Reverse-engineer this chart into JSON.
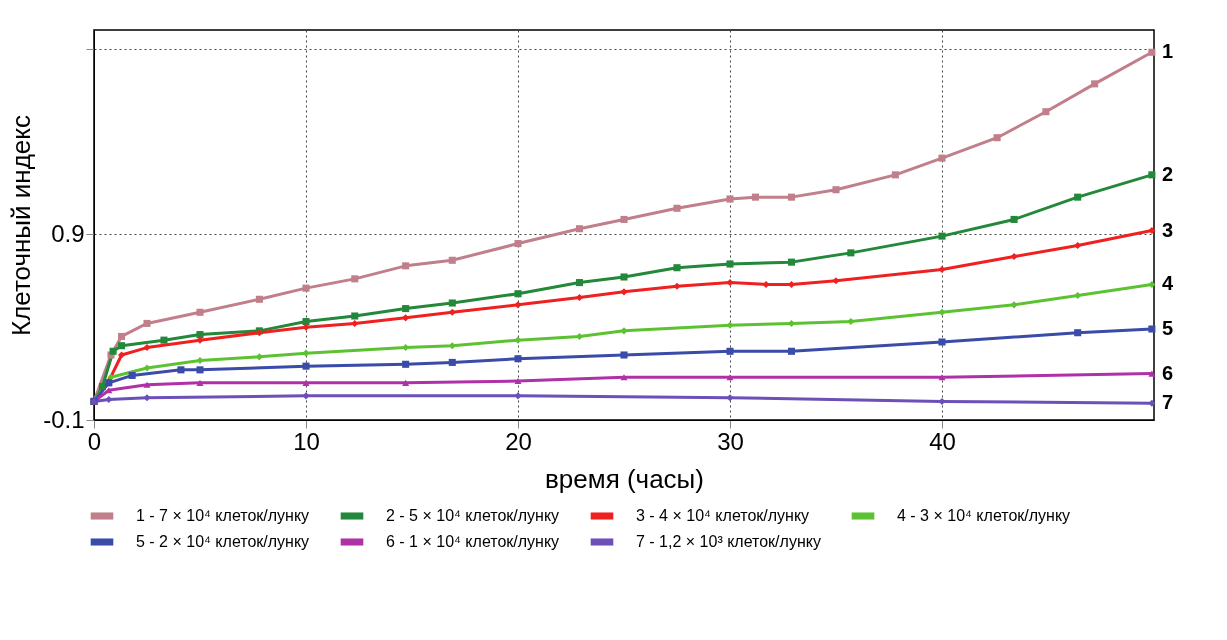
{
  "chart_data": {
    "type": "line",
    "xlabel": "время (часы)",
    "ylabel": "Клеточный индекс",
    "xlim": [
      0,
      50
    ],
    "xticks": [
      0,
      10,
      20,
      30,
      40
    ],
    "ylim": [
      -0.1,
      2.0
    ],
    "yticks": [
      -0.1,
      0.9,
      {
        "value": 1.9,
        "label": null
      }
    ],
    "grid": true,
    "legend": "bottom",
    "line_style": "solid",
    "series": [
      {
        "name": "1 - 7 × 10⁴ клеток/лунку",
        "color": "#c07f8a",
        "marker": "square",
        "x": [
          0,
          0.8,
          1.3,
          2.5,
          5,
          7.8,
          10,
          12.3,
          14.7,
          16.9,
          20,
          22.9,
          25,
          27.5,
          30,
          31.2,
          32.9,
          35,
          37.8,
          40,
          42.6,
          44.9,
          47.2,
          49.9
        ],
        "values": [
          0,
          0.25,
          0.35,
          0.42,
          0.48,
          0.55,
          0.61,
          0.66,
          0.73,
          0.76,
          0.85,
          0.93,
          0.98,
          1.04,
          1.09,
          1.1,
          1.1,
          1.14,
          1.22,
          1.31,
          1.42,
          1.56,
          1.71,
          1.88
        ]
      },
      {
        "name": "2 - 5 × 10⁴ клеток/лунку",
        "color": "#23883a",
        "marker": "square",
        "x": [
          0,
          0.4,
          0.9,
          1.3,
          3.3,
          5,
          7.8,
          10,
          12.3,
          14.7,
          16.9,
          20,
          22.9,
          25,
          27.5,
          30,
          32.9,
          35.7,
          40,
          43.4,
          46.4,
          49.9
        ],
        "values": [
          0,
          0.08,
          0.27,
          0.3,
          0.33,
          0.36,
          0.38,
          0.43,
          0.46,
          0.5,
          0.53,
          0.58,
          0.64,
          0.67,
          0.72,
          0.74,
          0.75,
          0.8,
          0.89,
          0.98,
          1.1,
          1.22
        ]
      },
      {
        "name": "3 - 4 × 10⁴ клеток/лунку",
        "color": "#f02020",
        "marker": "diamond",
        "x": [
          0,
          0.7,
          1.3,
          2.5,
          5,
          7.8,
          10,
          12.3,
          14.7,
          16.9,
          20,
          22.9,
          25,
          27.5,
          30,
          31.7,
          32.9,
          35,
          40,
          43.4,
          46.4,
          49.9
        ],
        "values": [
          0,
          0.11,
          0.25,
          0.29,
          0.33,
          0.37,
          0.4,
          0.42,
          0.45,
          0.48,
          0.52,
          0.56,
          0.59,
          0.62,
          0.64,
          0.63,
          0.63,
          0.65,
          0.71,
          0.78,
          0.84,
          0.92
        ]
      },
      {
        "name": "4 - 3 × 10⁴ клеток/лунку",
        "color": "#5cc232",
        "marker": "diamond",
        "x": [
          0,
          0.8,
          2.5,
          5,
          7.8,
          10,
          14.7,
          16.9,
          20,
          22.9,
          25,
          30,
          32.9,
          35.7,
          40,
          43.4,
          46.4,
          49.9
        ],
        "values": [
          0,
          0.13,
          0.18,
          0.22,
          0.24,
          0.26,
          0.29,
          0.3,
          0.33,
          0.35,
          0.38,
          0.41,
          0.42,
          0.43,
          0.48,
          0.52,
          0.57,
          0.63
        ]
      },
      {
        "name": "5 - 2 × 10⁴ клеток/лунку",
        "color": "#3a4ba8",
        "marker": "square",
        "x": [
          0,
          0.7,
          1.8,
          4.1,
          5,
          10,
          14.7,
          16.9,
          20,
          25,
          30,
          32.9,
          40,
          46.4,
          49.9
        ],
        "values": [
          0,
          0.1,
          0.14,
          0.17,
          0.17,
          0.19,
          0.2,
          0.21,
          0.23,
          0.25,
          0.27,
          0.27,
          0.32,
          0.37,
          0.39
        ]
      },
      {
        "name": "6 - 1 × 10⁴ клеток/лунку",
        "color": "#b030a8",
        "marker": "triangle",
        "x": [
          0,
          0.7,
          2.5,
          5,
          10,
          14.7,
          20,
          25,
          30,
          40,
          49.9
        ],
        "values": [
          0,
          0.06,
          0.09,
          0.1,
          0.1,
          0.1,
          0.11,
          0.13,
          0.13,
          0.13,
          0.15
        ]
      },
      {
        "name": "7 - 1,2 × 10³ клеток/лунку",
        "color": "#6a50b8",
        "marker": "diamond",
        "x": [
          0,
          0.7,
          2.5,
          10,
          20,
          30,
          40,
          49.9
        ],
        "values": [
          0,
          0.01,
          0.02,
          0.03,
          0.03,
          0.02,
          0,
          -0.01
        ]
      }
    ],
    "annotations": [
      "1",
      "2",
      "3",
      "4",
      "5",
      "6",
      "7"
    ]
  }
}
